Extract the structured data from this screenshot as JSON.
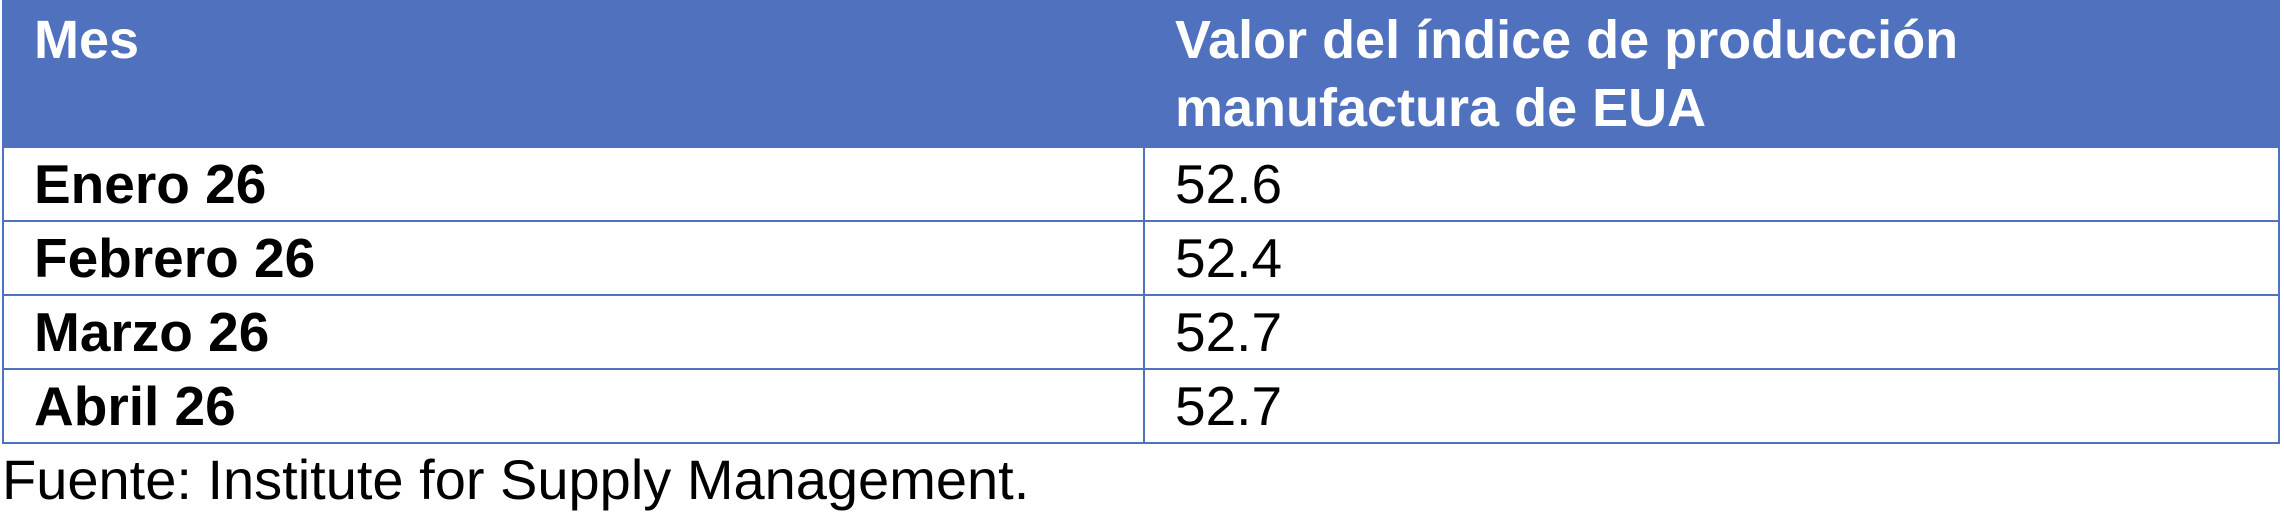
{
  "table": {
    "columns": [
      "Mes",
      "Valor del índice de producción manufactura de EUA"
    ],
    "rows": [
      [
        "Enero 26",
        52.6
      ],
      [
        "Febrero 26",
        52.4
      ],
      [
        "Marzo 26",
        52.7
      ],
      [
        "Abril 26",
        52.7
      ]
    ]
  },
  "footnote": "Fuente: Institute for Supply Management."
}
